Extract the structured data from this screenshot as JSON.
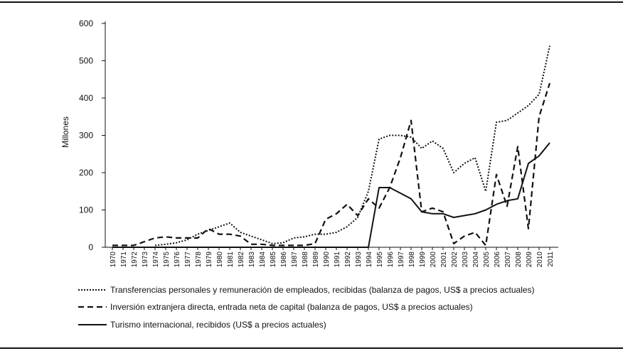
{
  "chart_data": {
    "type": "line",
    "title": "",
    "xlabel": "",
    "ylabel": "Millones",
    "ylim": [
      0,
      600
    ],
    "yticks": [
      "0",
      "100",
      "200",
      "300",
      "400",
      "500",
      "600"
    ],
    "x": [
      "1970",
      "1971",
      "1972",
      "1973",
      "1974",
      "1975",
      "1976",
      "1977",
      "1978",
      "1979",
      "1980",
      "1981",
      "1982",
      "1983",
      "1984",
      "1985",
      "1986",
      "1987",
      "1988",
      "1989",
      "1990",
      "1991",
      "1992",
      "1993",
      "1994",
      "1995",
      "1996",
      "1997",
      "1998",
      "1999",
      "2000",
      "2001",
      "2002",
      "2003",
      "2004",
      "2005",
      "2006",
      "2007",
      "2008",
      "2009",
      "2010",
      "2011"
    ],
    "grid": false,
    "legend_position": "bottom",
    "series": [
      {
        "name": "Transferencias personales y remuneración de empleados, recibidas (balanza de pagos, US$ a precios actuales)",
        "style": "dotted",
        "values": [
          null,
          null,
          null,
          null,
          5,
          8,
          12,
          20,
          35,
          45,
          55,
          65,
          40,
          30,
          20,
          10,
          12,
          25,
          28,
          35,
          35,
          40,
          55,
          80,
          150,
          290,
          300,
          300,
          295,
          265,
          285,
          265,
          200,
          225,
          240,
          150,
          335,
          340,
          360,
          380,
          410,
          540
        ]
      },
      {
        "name": "Inversión extranjera directa, entrada neta de capital (balanza de pagos, US$ a precios actuales)",
        "style": "dashed",
        "values": [
          5,
          5,
          5,
          15,
          25,
          28,
          25,
          25,
          25,
          50,
          35,
          35,
          30,
          8,
          8,
          5,
          5,
          5,
          5,
          10,
          75,
          90,
          115,
          85,
          130,
          105,
          160,
          240,
          340,
          95,
          105,
          95,
          10,
          30,
          40,
          5,
          195,
          110,
          270,
          50,
          350,
          440
        ]
      },
      {
        "name": "Turismo internacional, recibidos (US$ a precios actuales)",
        "style": "solid",
        "values": [
          0,
          0,
          0,
          0,
          0,
          0,
          0,
          0,
          0,
          0,
          0,
          0,
          0,
          0,
          0,
          0,
          0,
          0,
          0,
          0,
          0,
          0,
          0,
          0,
          0,
          160,
          160,
          145,
          130,
          95,
          90,
          90,
          80,
          85,
          90,
          100,
          115,
          125,
          130,
          225,
          245,
          280
        ]
      }
    ]
  }
}
